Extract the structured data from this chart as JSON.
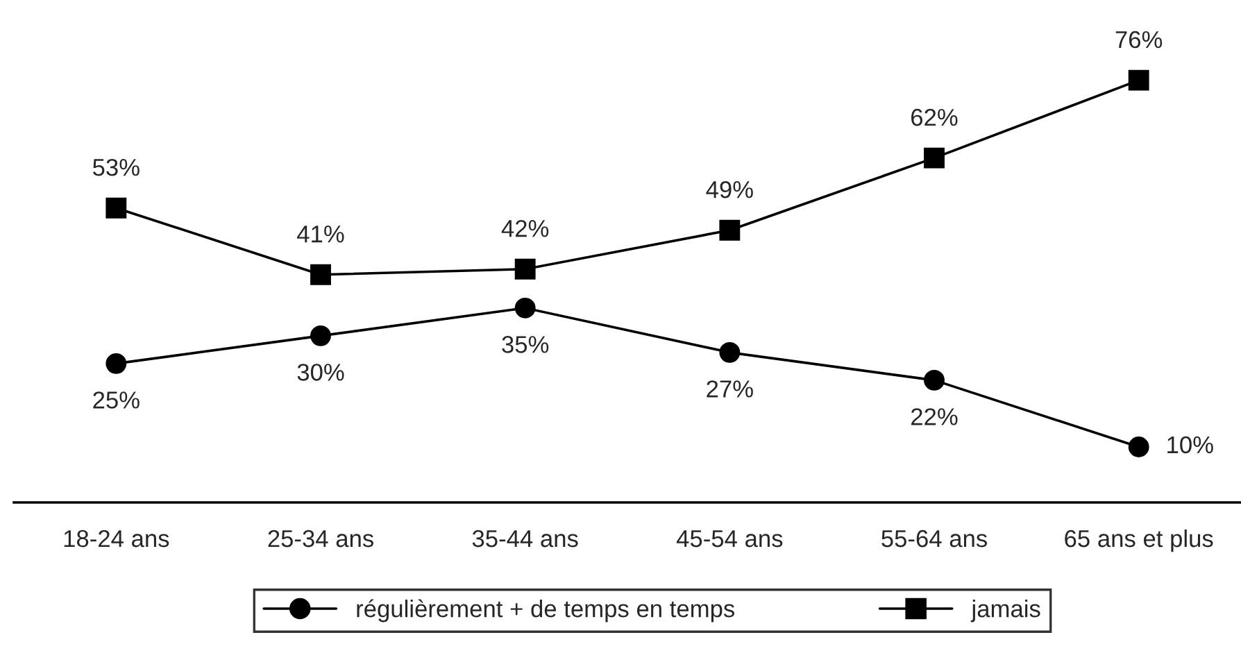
{
  "chart_data": {
    "type": "line",
    "categories": [
      "18-24 ans",
      "25-34 ans",
      "35-44 ans",
      "45-54 ans",
      "55-64 ans",
      "65 ans et plus"
    ],
    "series": [
      {
        "name": "régulièrement + de temps en temps",
        "color": "#000000",
        "marker": "circle",
        "values": [
          25,
          30,
          35,
          27,
          22,
          10
        ],
        "value_labels": [
          "25%",
          "30%",
          "35%",
          "27%",
          "22%",
          "10%"
        ]
      },
      {
        "name": "jamais",
        "color": "#000000",
        "marker": "square",
        "values": [
          53,
          41,
          42,
          49,
          62,
          76
        ],
        "value_labels": [
          "53%",
          "41%",
          "42%",
          "49%",
          "62%",
          "76%"
        ]
      }
    ],
    "tick_labels": "x",
    "legend": "bottom"
  }
}
